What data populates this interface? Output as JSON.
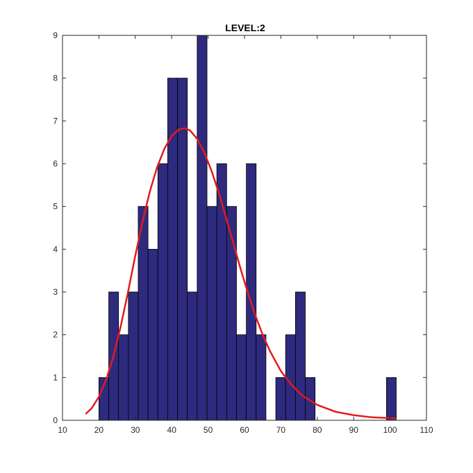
{
  "chart_data": {
    "type": "bar",
    "title": "LEVEL:2",
    "xlabel": "",
    "ylabel": "",
    "xlim": [
      10,
      110
    ],
    "ylim": [
      0,
      9
    ],
    "xticks": [
      10,
      20,
      30,
      40,
      50,
      60,
      70,
      80,
      90,
      100,
      110
    ],
    "yticks": [
      0,
      1,
      2,
      3,
      4,
      5,
      6,
      7,
      8,
      9
    ],
    "grid": false,
    "bin_width": 2.7,
    "bins": [
      {
        "start": 20.0,
        "end": 22.7,
        "count": 1
      },
      {
        "start": 22.7,
        "end": 25.4,
        "count": 3
      },
      {
        "start": 25.4,
        "end": 28.1,
        "count": 2
      },
      {
        "start": 28.1,
        "end": 30.8,
        "count": 3
      },
      {
        "start": 30.8,
        "end": 33.5,
        "count": 5
      },
      {
        "start": 33.5,
        "end": 36.2,
        "count": 4
      },
      {
        "start": 36.2,
        "end": 38.9,
        "count": 6
      },
      {
        "start": 38.9,
        "end": 41.6,
        "count": 8
      },
      {
        "start": 41.6,
        "end": 44.3,
        "count": 8
      },
      {
        "start": 44.3,
        "end": 47.0,
        "count": 3
      },
      {
        "start": 47.0,
        "end": 49.7,
        "count": 9
      },
      {
        "start": 49.7,
        "end": 52.4,
        "count": 5
      },
      {
        "start": 52.4,
        "end": 55.1,
        "count": 6
      },
      {
        "start": 55.1,
        "end": 57.8,
        "count": 5
      },
      {
        "start": 57.8,
        "end": 60.5,
        "count": 2
      },
      {
        "start": 60.5,
        "end": 63.2,
        "count": 6
      },
      {
        "start": 63.2,
        "end": 65.9,
        "count": 2
      },
      {
        "start": 65.9,
        "end": 68.6,
        "count": 0
      },
      {
        "start": 68.6,
        "end": 71.3,
        "count": 1
      },
      {
        "start": 71.3,
        "end": 74.0,
        "count": 2
      },
      {
        "start": 74.0,
        "end": 76.7,
        "count": 3
      },
      {
        "start": 76.7,
        "end": 79.4,
        "count": 1
      },
      {
        "start": 99.0,
        "end": 101.7,
        "count": 1
      }
    ],
    "fit_curve": {
      "type": "line",
      "color": "#e41a1c",
      "x": [
        16.5,
        18,
        20,
        22,
        24,
        26,
        28,
        30,
        32,
        34,
        36,
        38,
        40,
        42,
        43.5,
        45,
        47,
        49,
        51,
        53,
        55,
        57,
        59,
        61,
        63,
        65,
        67,
        70,
        73,
        76,
        80,
        85,
        90,
        95,
        100,
        101.5
      ],
      "y": [
        0.16,
        0.28,
        0.55,
        0.95,
        1.5,
        2.2,
        3.0,
        3.85,
        4.65,
        5.35,
        5.92,
        6.35,
        6.65,
        6.8,
        6.83,
        6.78,
        6.58,
        6.25,
        5.82,
        5.3,
        4.72,
        4.12,
        3.52,
        2.96,
        2.45,
        2.0,
        1.62,
        1.15,
        0.82,
        0.57,
        0.36,
        0.2,
        0.12,
        0.07,
        0.05,
        0.04
      ]
    },
    "bar_fill": "#2e2a7e",
    "bar_stroke": "#000000"
  }
}
